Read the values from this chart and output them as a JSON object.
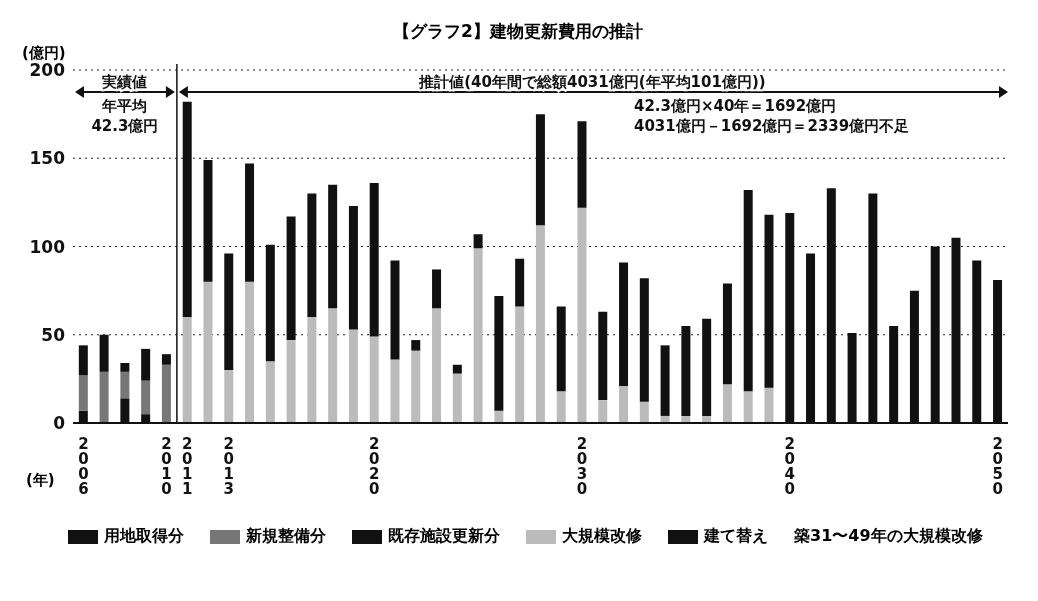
{
  "chart_data": {
    "type": "bar",
    "stacked": true,
    "title": "【グラフ2】建物更新費用の推計",
    "ylabel": "(億円)",
    "xlabel": "(年)",
    "categories": [
      "2006",
      null,
      null,
      null,
      "2010",
      "2011",
      null,
      "2013",
      null,
      null,
      null,
      null,
      null,
      null,
      "2020",
      null,
      null,
      null,
      null,
      null,
      null,
      null,
      null,
      null,
      "2030",
      null,
      null,
      null,
      null,
      null,
      null,
      null,
      null,
      null,
      "2040",
      null,
      null,
      null,
      null,
      null,
      null,
      null,
      null,
      null,
      "2050"
    ],
    "series": [
      {
        "name": "用地取得分",
        "color": "#111111",
        "values": [
          7,
          0,
          14,
          5,
          0,
          null,
          null,
          null,
          null,
          null,
          null,
          null,
          null,
          null,
          null,
          null,
          null,
          null,
          null,
          null,
          null,
          null,
          null,
          null,
          null,
          null,
          null,
          null,
          null,
          null,
          null,
          null,
          null,
          null,
          null,
          null,
          null,
          null,
          null,
          null,
          null,
          null,
          null,
          null,
          null
        ]
      },
      {
        "name": "新規整備分",
        "color": "#777777",
        "values": [
          20,
          29,
          15,
          19,
          33,
          null,
          null,
          null,
          null,
          null,
          null,
          null,
          null,
          null,
          null,
          null,
          null,
          null,
          null,
          null,
          null,
          null,
          null,
          null,
          null,
          null,
          null,
          null,
          null,
          null,
          null,
          null,
          null,
          null,
          null,
          null,
          null,
          null,
          null,
          null,
          null,
          null,
          null,
          null,
          null
        ]
      },
      {
        "name": "既存施設更新分",
        "color": "#111111",
        "values": [
          17,
          21,
          5,
          18,
          6,
          null,
          null,
          null,
          null,
          null,
          null,
          null,
          null,
          null,
          null,
          null,
          null,
          null,
          null,
          null,
          null,
          null,
          null,
          null,
          null,
          null,
          null,
          null,
          null,
          null,
          null,
          null,
          null,
          null,
          null,
          null,
          null,
          null,
          null,
          null,
          null,
          null,
          null,
          null,
          null
        ]
      },
      {
        "name": "大規模改修",
        "color": "#bbbbbb",
        "values": [
          null,
          null,
          null,
          null,
          null,
          60,
          80,
          30,
          80,
          35,
          47,
          60,
          65,
          53,
          49,
          36,
          41,
          65,
          28,
          99,
          7,
          66,
          112,
          18,
          122,
          13,
          21,
          12,
          4,
          4,
          4,
          22,
          18,
          20,
          0,
          0,
          0,
          0,
          0,
          0,
          0,
          0,
          0,
          0,
          0
        ]
      },
      {
        "name": "建て替え",
        "color": "#111111",
        "values": [
          null,
          null,
          null,
          null,
          null,
          122,
          69,
          66,
          67,
          66,
          70,
          70,
          70,
          70,
          87,
          56,
          6,
          22,
          5,
          8,
          65,
          27,
          63,
          48,
          49,
          50,
          70,
          70,
          40,
          51,
          55,
          57,
          114,
          98,
          119,
          96,
          133,
          51,
          130,
          55,
          75,
          100,
          105,
          92,
          81
        ]
      }
    ],
    "ylim": [
      0,
      200
    ],
    "yticks": [
      0,
      50,
      100,
      150,
      200
    ],
    "grid": "y",
    "legend": "bottom",
    "annotations": [
      "実績値",
      "年平均",
      "42.3億円",
      "推計値(40年間で総額4031億円(年平均101億円))",
      "42.3億円×40年＝1692億円",
      "4031億円－1692億円＝2339億円不足",
      "築31〜49年の大規模改修"
    ]
  }
}
